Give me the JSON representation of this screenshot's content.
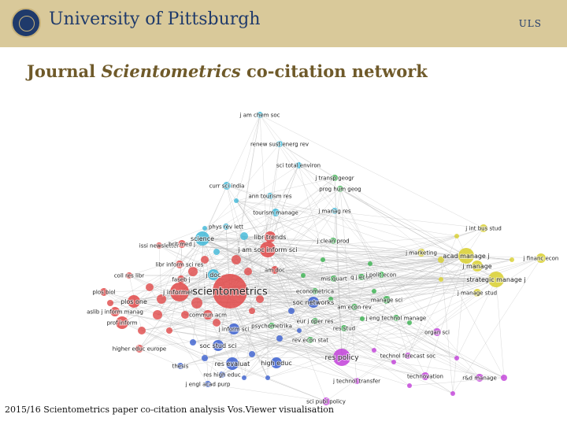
{
  "header": {
    "university": "University of Pittsburgh",
    "library_tag": "ULS",
    "seal_icon": "university-seal-icon"
  },
  "slide": {
    "title_prefix": "Journal ",
    "title_italic": "Scientometrics",
    "title_suffix": " co-citation network",
    "caption": "2015/16 Scientometrics paper co-citation analysis Vos.Viewer visualisation"
  },
  "colors": {
    "banner": "#d9c99a",
    "brand_blue": "#1f3a6b",
    "title_brown": "#6f5a2a",
    "cluster_red": "#e04848",
    "cluster_blue": "#3a5fd0",
    "cluster_cyan": "#3fb8d8",
    "cluster_green": "#37b24d",
    "cluster_yellow": "#d8cf2e",
    "cluster_purple": "#c23fd9",
    "edge": "#b8b8b8"
  },
  "network": {
    "nodes": [
      {
        "label": "j am chem soc",
        "cluster": "cyan"
      },
      {
        "label": "renew sust energ rev",
        "cluster": "cyan"
      },
      {
        "label": "sci total environ",
        "cluster": "cyan"
      },
      {
        "label": "curr sci india",
        "cluster": "cyan"
      },
      {
        "label": "ann tourism res",
        "cluster": "cyan"
      },
      {
        "label": "tourism manage",
        "cluster": "cyan"
      },
      {
        "label": "phys rev lett",
        "cluster": "cyan"
      },
      {
        "label": "science",
        "cluster": "cyan"
      },
      {
        "label": "j transp geogr",
        "cluster": "green"
      },
      {
        "label": "prog hum geog",
        "cluster": "green"
      },
      {
        "label": "j manag res",
        "cluster": "cyan"
      },
      {
        "label": "libr trends",
        "cluster": "red"
      },
      {
        "label": "j am soc inform sci",
        "cluster": "red"
      },
      {
        "label": "j clean prod",
        "cluster": "green"
      },
      {
        "label": "issi newsletter",
        "cluster": "red"
      },
      {
        "label": "brit med j",
        "cluster": "red"
      },
      {
        "label": "libr inform sci res",
        "cluster": "red"
      },
      {
        "label": "coll res libr",
        "cluster": "red"
      },
      {
        "label": "faseb j",
        "cluster": "red"
      },
      {
        "label": "j doc",
        "cluster": "cyan"
      },
      {
        "label": "am doc",
        "cluster": "red"
      },
      {
        "label": "plos biol",
        "cluster": "red"
      },
      {
        "label": "plos one",
        "cluster": "red"
      },
      {
        "label": "j informetr",
        "cluster": "red"
      },
      {
        "label": "scientometrics",
        "cluster": "red"
      },
      {
        "label": "aslib j inform manag",
        "cluster": "red"
      },
      {
        "label": "prof inform",
        "cluster": "red"
      },
      {
        "label": "commun acm",
        "cluster": "red"
      },
      {
        "label": "j inform sci",
        "cluster": "blue"
      },
      {
        "label": "psychometrika",
        "cluster": "green"
      },
      {
        "label": "econometrica",
        "cluster": "green"
      },
      {
        "label": "soc networks",
        "cluster": "blue"
      },
      {
        "label": "am econ rev",
        "cluster": "green"
      },
      {
        "label": "eur j oper res",
        "cluster": "green"
      },
      {
        "label": "res stud",
        "cluster": "green"
      },
      {
        "label": "rev econ stat",
        "cluster": "green"
      },
      {
        "label": "soc stud sci",
        "cluster": "blue"
      },
      {
        "label": "higher educ europe",
        "cluster": "red"
      },
      {
        "label": "thesis",
        "cluster": "blue"
      },
      {
        "label": "res evaluat",
        "cluster": "blue"
      },
      {
        "label": "res high educ",
        "cluster": "blue"
      },
      {
        "label": "high educ",
        "cluster": "blue"
      },
      {
        "label": "j engl acad purp",
        "cluster": "blue"
      },
      {
        "label": "res policy",
        "cluster": "purple"
      },
      {
        "label": "j technol transfer",
        "cluster": "purple"
      },
      {
        "label": "sci publ policy",
        "cluster": "purple"
      },
      {
        "label": "technovation",
        "cluster": "purple"
      },
      {
        "label": "r&d manage",
        "cluster": "purple"
      },
      {
        "label": "organ sci",
        "cluster": "purple"
      },
      {
        "label": "manage sci",
        "cluster": "green"
      },
      {
        "label": "j eng technol manage",
        "cluster": "green"
      },
      {
        "label": "q j econ",
        "cluster": "green"
      },
      {
        "label": "mis quart",
        "cluster": "green"
      },
      {
        "label": "j polit econ",
        "cluster": "green"
      },
      {
        "label": "j marketing",
        "cluster": "yellow"
      },
      {
        "label": "acad manage j",
        "cluster": "yellow"
      },
      {
        "label": "j manage",
        "cluster": "yellow"
      },
      {
        "label": "strategic manage j",
        "cluster": "yellow"
      },
      {
        "label": "j manage stud",
        "cluster": "yellow"
      },
      {
        "label": "j int bus stud",
        "cluster": "yellow"
      },
      {
        "label": "j financ econ",
        "cluster": "yellow"
      },
      {
        "label": "technol forecast soc",
        "cluster": "purple"
      }
    ]
  }
}
